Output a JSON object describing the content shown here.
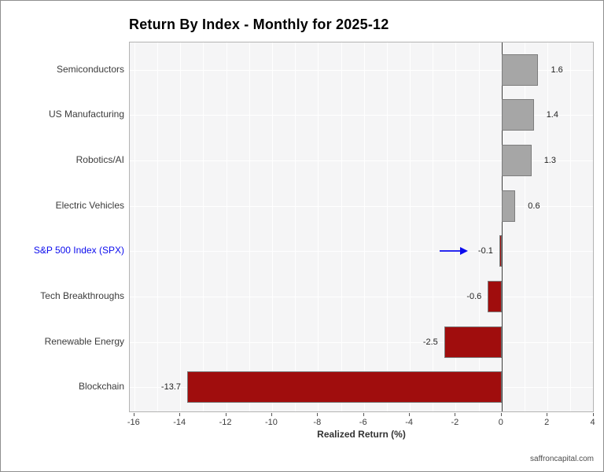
{
  "figure": {
    "source": "saffroncapital.com"
  },
  "chart_data": {
    "type": "bar",
    "orientation": "horizontal",
    "title": "Return By Index - Monthly for 2025-12",
    "categories": [
      "Semiconductors",
      "US Manufacturing",
      "Robotics/AI",
      "Electric Vehicles",
      "S&P 500 Index (SPX)",
      "Tech Breakthroughs",
      "Renewable Energy",
      "Blockchain"
    ],
    "values": [
      1.6,
      1.4,
      1.3,
      0.6,
      -0.1,
      -0.6,
      -2.5,
      -13.7
    ],
    "value_labels": [
      "1.6",
      "1.4",
      "1.3",
      "0.6",
      "-0.1",
      "-0.6",
      "-2.5",
      "-13.7"
    ],
    "xlabel": "Realized Return (%)",
    "ylabel": "",
    "xlim": [
      -16.2,
      4.05
    ],
    "xticks": [
      -16,
      -14,
      -12,
      -10,
      -8,
      -6,
      -4,
      -2,
      0,
      2,
      4
    ],
    "grid": true,
    "gridline_step": 1,
    "legend": "none",
    "highlight": {
      "category": "S&P 500 Index (SPX)",
      "index": 4,
      "annotation": "arrow-right-icon"
    },
    "colors": {
      "positive_bar": "#a6a6a6",
      "negative_bar": "#a00d0d",
      "bar_border": "#7d7d7d",
      "highlight_blue": "#0b0bee",
      "plot_bg": "#f5f5f6",
      "grid_line": "#ffffff",
      "zero_line": "#3f3f3f",
      "title_color": "#000000",
      "label_color": "#3c3c3c"
    }
  }
}
